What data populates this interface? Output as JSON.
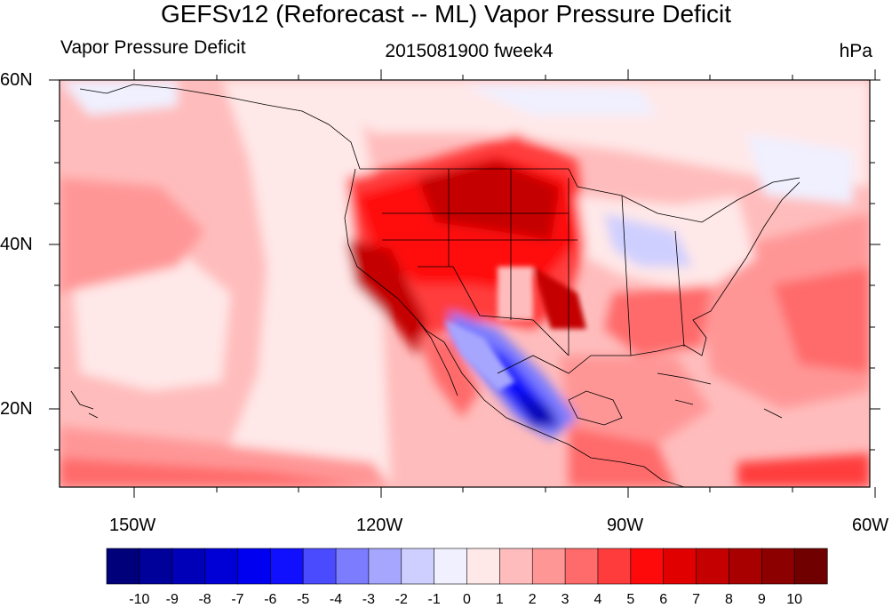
{
  "header": {
    "title": "GEFSv12 (Reforecast -- ML) Vapor Pressure Deficit",
    "left": "Vapor Pressure Deficit",
    "center": "2015081900 fweek4",
    "right": "hPa"
  },
  "map": {
    "lat_labels": [
      "60N",
      "40N",
      "20N"
    ],
    "lon_labels": [
      "150W",
      "120W",
      "90W",
      "60W"
    ],
    "lon_range": [
      -159,
      -60
    ],
    "lat_range": [
      10,
      60
    ]
  },
  "colorbar": {
    "labels": [
      "-10",
      "-9",
      "-8",
      "-7",
      "-6",
      "-5",
      "-4",
      "-3",
      "-2",
      "-1",
      "0",
      "1",
      "2",
      "3",
      "4",
      "5",
      "6",
      "7",
      "8",
      "9",
      "10"
    ],
    "colors": [
      "#00007a",
      "#00009a",
      "#0000b8",
      "#0000d6",
      "#0000f0",
      "#1010ff",
      "#4a4aff",
      "#7c7cff",
      "#a6a6ff",
      "#cfcfff",
      "#f0f0ff",
      "#ffe8e8",
      "#ffbcbc",
      "#ff9696",
      "#ff6a6a",
      "#ff3c3c",
      "#ff0a0a",
      "#e00000",
      "#c40000",
      "#a80000",
      "#8c0000",
      "#700000"
    ]
  }
}
